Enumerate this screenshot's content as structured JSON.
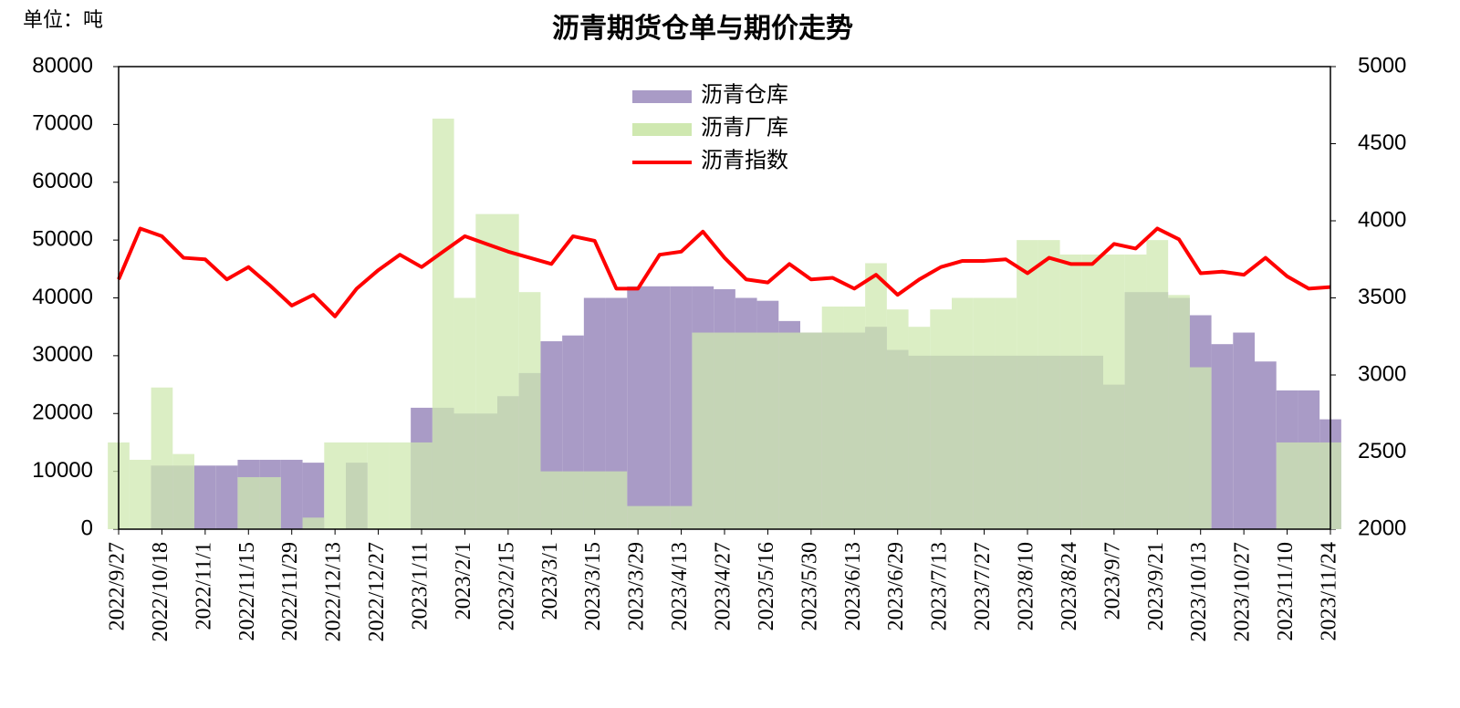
{
  "chart_data": {
    "type": "bar-line",
    "title": "沥青期货仓单与期价走势",
    "unit_label": "单位：吨",
    "categories": [
      "2022/9/27",
      null,
      "2022/10/18",
      null,
      "2022/11/1",
      null,
      "2022/11/15",
      null,
      "2022/11/29",
      null,
      "2022/12/13",
      null,
      "2022/12/27",
      null,
      "2023/1/11",
      null,
      "2023/2/1",
      null,
      "2023/2/15",
      null,
      "2023/3/1",
      null,
      "2023/3/15",
      null,
      "2023/3/29",
      null,
      "2023/4/13",
      null,
      "2023/4/27",
      null,
      "2023/5/16",
      null,
      "2023/5/30",
      null,
      "2023/6/13",
      null,
      "2023/6/29",
      null,
      "2023/7/13",
      null,
      "2023/7/27",
      null,
      "2023/8/10",
      null,
      "2023/8/24",
      null,
      "2023/9/7",
      null,
      "2023/9/21",
      null,
      "2023/10/13",
      null,
      "2023/10/27",
      null,
      "2023/11/10",
      null,
      "2023/11/24"
    ],
    "series": [
      {
        "name": "沥青仓库",
        "color": "#a99bc6",
        "kind": "bar",
        "values": [
          0,
          0,
          11000,
          11000,
          11000,
          11000,
          12000,
          12000,
          12000,
          11500,
          0,
          11500,
          0,
          0,
          21000,
          21000,
          20000,
          20000,
          23000,
          27000,
          32500,
          33500,
          40000,
          40000,
          42000,
          42000,
          42000,
          42000,
          41500,
          40000,
          39500,
          36000,
          34000,
          34000,
          34000,
          35000,
          31000,
          30000,
          30000,
          30000,
          30000,
          30000,
          30000,
          30000,
          30000,
          30000,
          25000,
          41000,
          41000,
          40000,
          37000,
          32000,
          34000,
          29000,
          24000,
          24000,
          19000
        ]
      },
      {
        "name": "沥青厂库",
        "color": "#cfe8b0",
        "kind": "bar",
        "values": [
          15000,
          12000,
          24500,
          13000,
          0,
          0,
          9000,
          9000,
          0,
          2000,
          15000,
          15000,
          15000,
          15000,
          15000,
          71000,
          40000,
          54500,
          54500,
          41000,
          10000,
          10000,
          10000,
          10000,
          4000,
          4000,
          4000,
          34000,
          34000,
          34000,
          34000,
          34000,
          34000,
          38500,
          38500,
          46000,
          38000,
          35000,
          38000,
          40000,
          40000,
          40000,
          50000,
          50000,
          47500,
          47500,
          47500,
          47500,
          50000,
          40500,
          28000,
          0,
          0,
          0,
          15000,
          15000,
          15000
        ]
      },
      {
        "name": "沥青指数",
        "color": "#ff0000",
        "kind": "line",
        "axis": "y2",
        "values": [
          3620,
          3950,
          3900,
          3760,
          3750,
          3620,
          3700,
          3580,
          3450,
          3520,
          3380,
          3560,
          3680,
          3780,
          3700,
          3800,
          3900,
          3850,
          3800,
          3760,
          3720,
          3900,
          3870,
          3560,
          3560,
          3780,
          3800,
          3930,
          3760,
          3620,
          3600,
          3720,
          3620,
          3630,
          3560,
          3650,
          3520,
          3620,
          3700,
          3740,
          3740,
          3750,
          3660,
          3760,
          3720,
          3720,
          3850,
          3820,
          3950,
          3880,
          3660,
          3670,
          3650,
          3760,
          3640,
          3560,
          3570
        ]
      }
    ],
    "ylim": [
      0,
      80000
    ],
    "yticks": [
      0,
      10000,
      20000,
      30000,
      40000,
      50000,
      60000,
      70000,
      80000
    ],
    "y2lim": [
      2000,
      5000
    ],
    "y2ticks": [
      2000,
      2500,
      3000,
      3500,
      4000,
      4500,
      5000
    ],
    "legend": "top-center"
  }
}
